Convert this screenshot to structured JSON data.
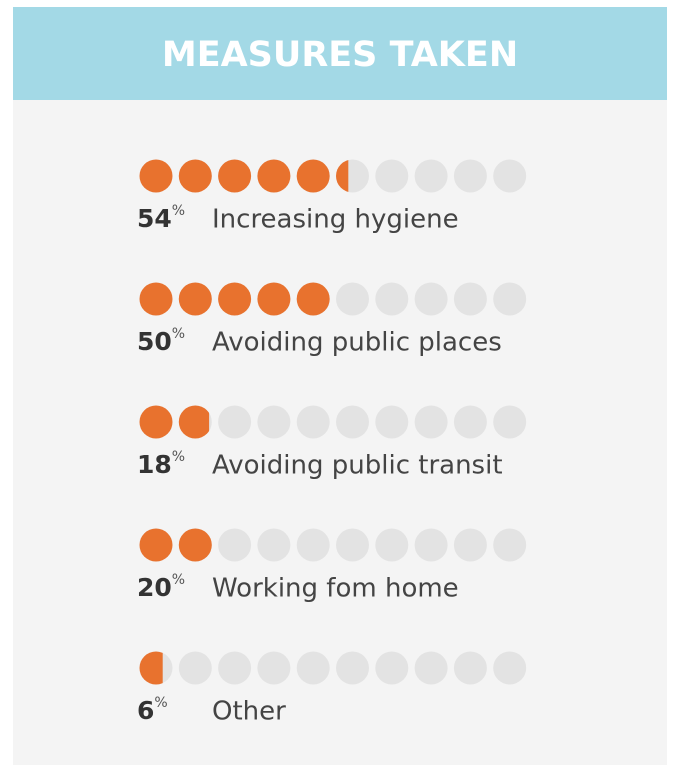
{
  "chart_data": {
    "type": "pictogram",
    "title": "MEASURES TAKEN",
    "categories": [
      "Increasing hygiene",
      "Avoiding public places",
      "Avoiding public transit",
      "Working fom home",
      "Other"
    ],
    "values": [
      54,
      50,
      18,
      20,
      6
    ],
    "unit": "%",
    "xlim": [
      0,
      100
    ],
    "color": "#e8722e",
    "empty_color": "#e3e3e3"
  }
}
